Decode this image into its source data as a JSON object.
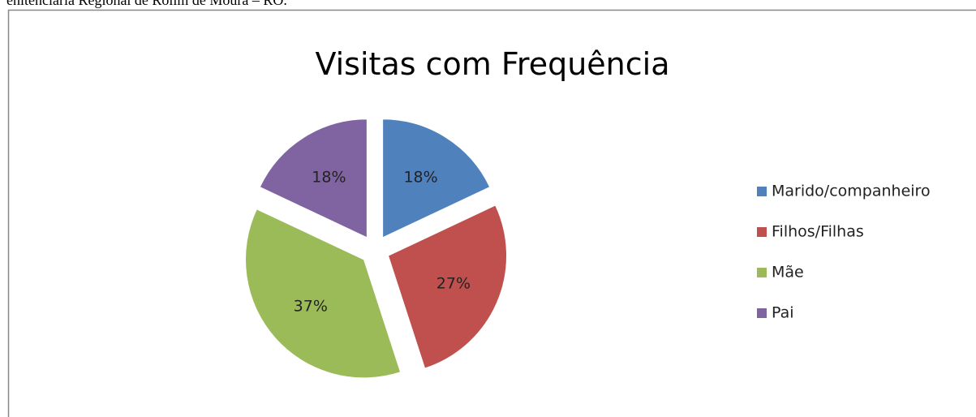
{
  "document_text": "enitenciaria Regional de Rolim de Moura – RO.",
  "chart_data": {
    "type": "pie",
    "title": "Visitas com Frequência",
    "categories": [
      "Marido/companheiro",
      "Filhos/Filhas",
      "Mãe",
      "Pai"
    ],
    "values": [
      18,
      27,
      37,
      18
    ],
    "value_labels": [
      "18%",
      "27%",
      "37%",
      "18%"
    ],
    "colors": [
      "#4f81bd",
      "#c0504d",
      "#9bbb59",
      "#8064a2"
    ],
    "legend": "right"
  }
}
